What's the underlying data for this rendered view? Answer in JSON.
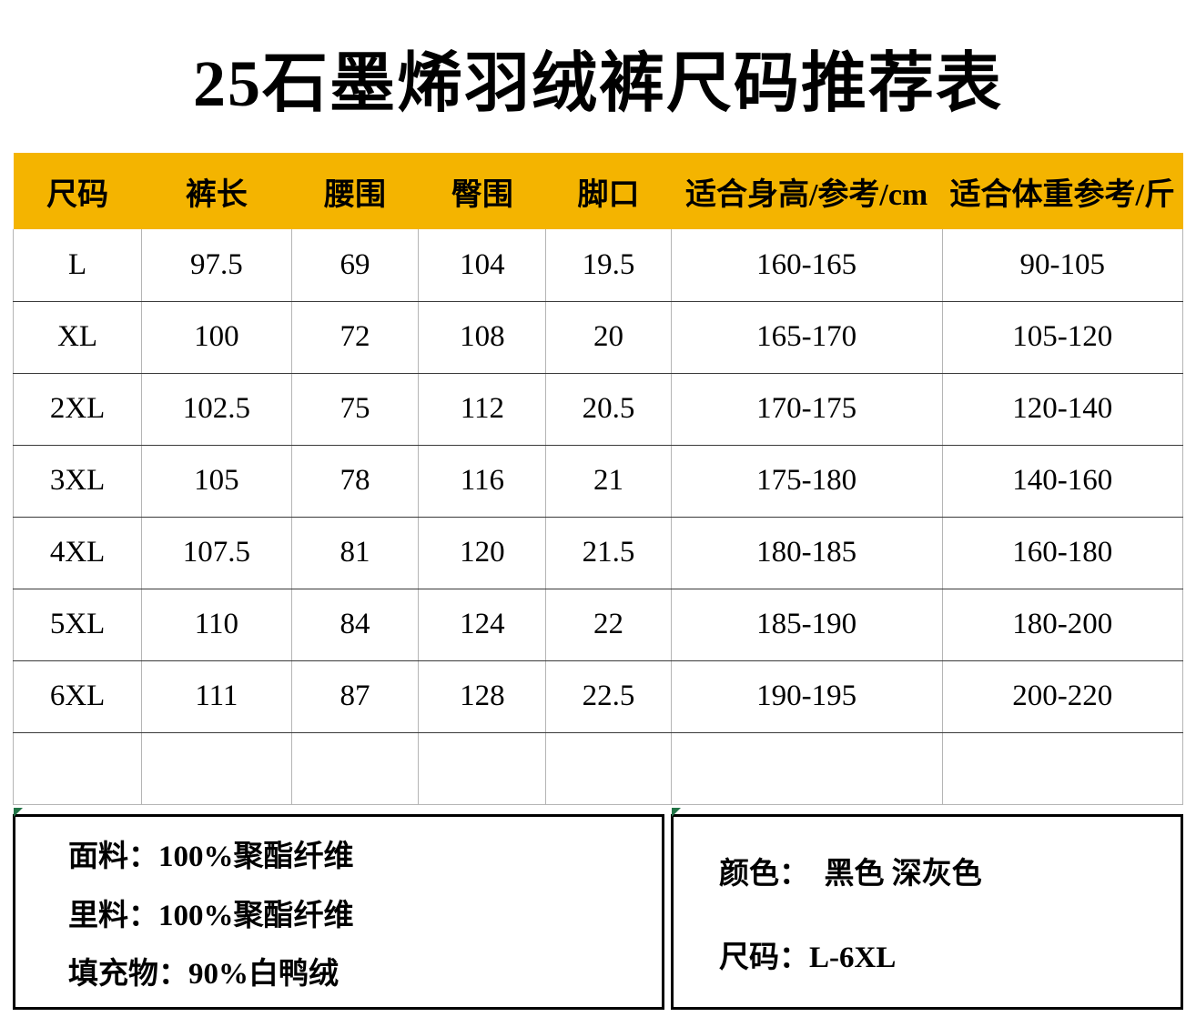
{
  "title": "25石墨烯羽绒裤尺码推荐表",
  "table": {
    "headers": [
      "尺码",
      "裤长",
      "腰围",
      "臀围",
      "脚口",
      "适合身高/参考/cm",
      "适合体重参考/斤"
    ],
    "rows": [
      [
        "L",
        "97.5",
        "69",
        "104",
        "19.5",
        "160-165",
        "90-105"
      ],
      [
        "XL",
        "100",
        "72",
        "108",
        "20",
        "165-170",
        "105-120"
      ],
      [
        "2XL",
        "102.5",
        "75",
        "112",
        "20.5",
        "170-175",
        "120-140"
      ],
      [
        "3XL",
        "105",
        "78",
        "116",
        "21",
        "175-180",
        "140-160"
      ],
      [
        "4XL",
        "107.5",
        "81",
        "120",
        "21.5",
        "180-185",
        "160-180"
      ],
      [
        "5XL",
        "110",
        "84",
        "124",
        "22",
        "185-190",
        "180-200"
      ],
      [
        "6XL",
        "111",
        "87",
        "128",
        "22.5",
        "190-195",
        "200-220"
      ],
      [
        "",
        "",
        "",
        "",
        "",
        "",
        ""
      ]
    ]
  },
  "materials": {
    "lines": [
      "面料：100%聚酯纤维",
      "里料：100%聚酯纤维",
      "填充物：90%白鸭绒"
    ]
  },
  "options": {
    "lines": [
      "颜色：  黑色 深灰色",
      "尺码：L-6XL"
    ]
  },
  "colors": {
    "header_bg": "#F4B400",
    "flag_green": "#217346"
  }
}
